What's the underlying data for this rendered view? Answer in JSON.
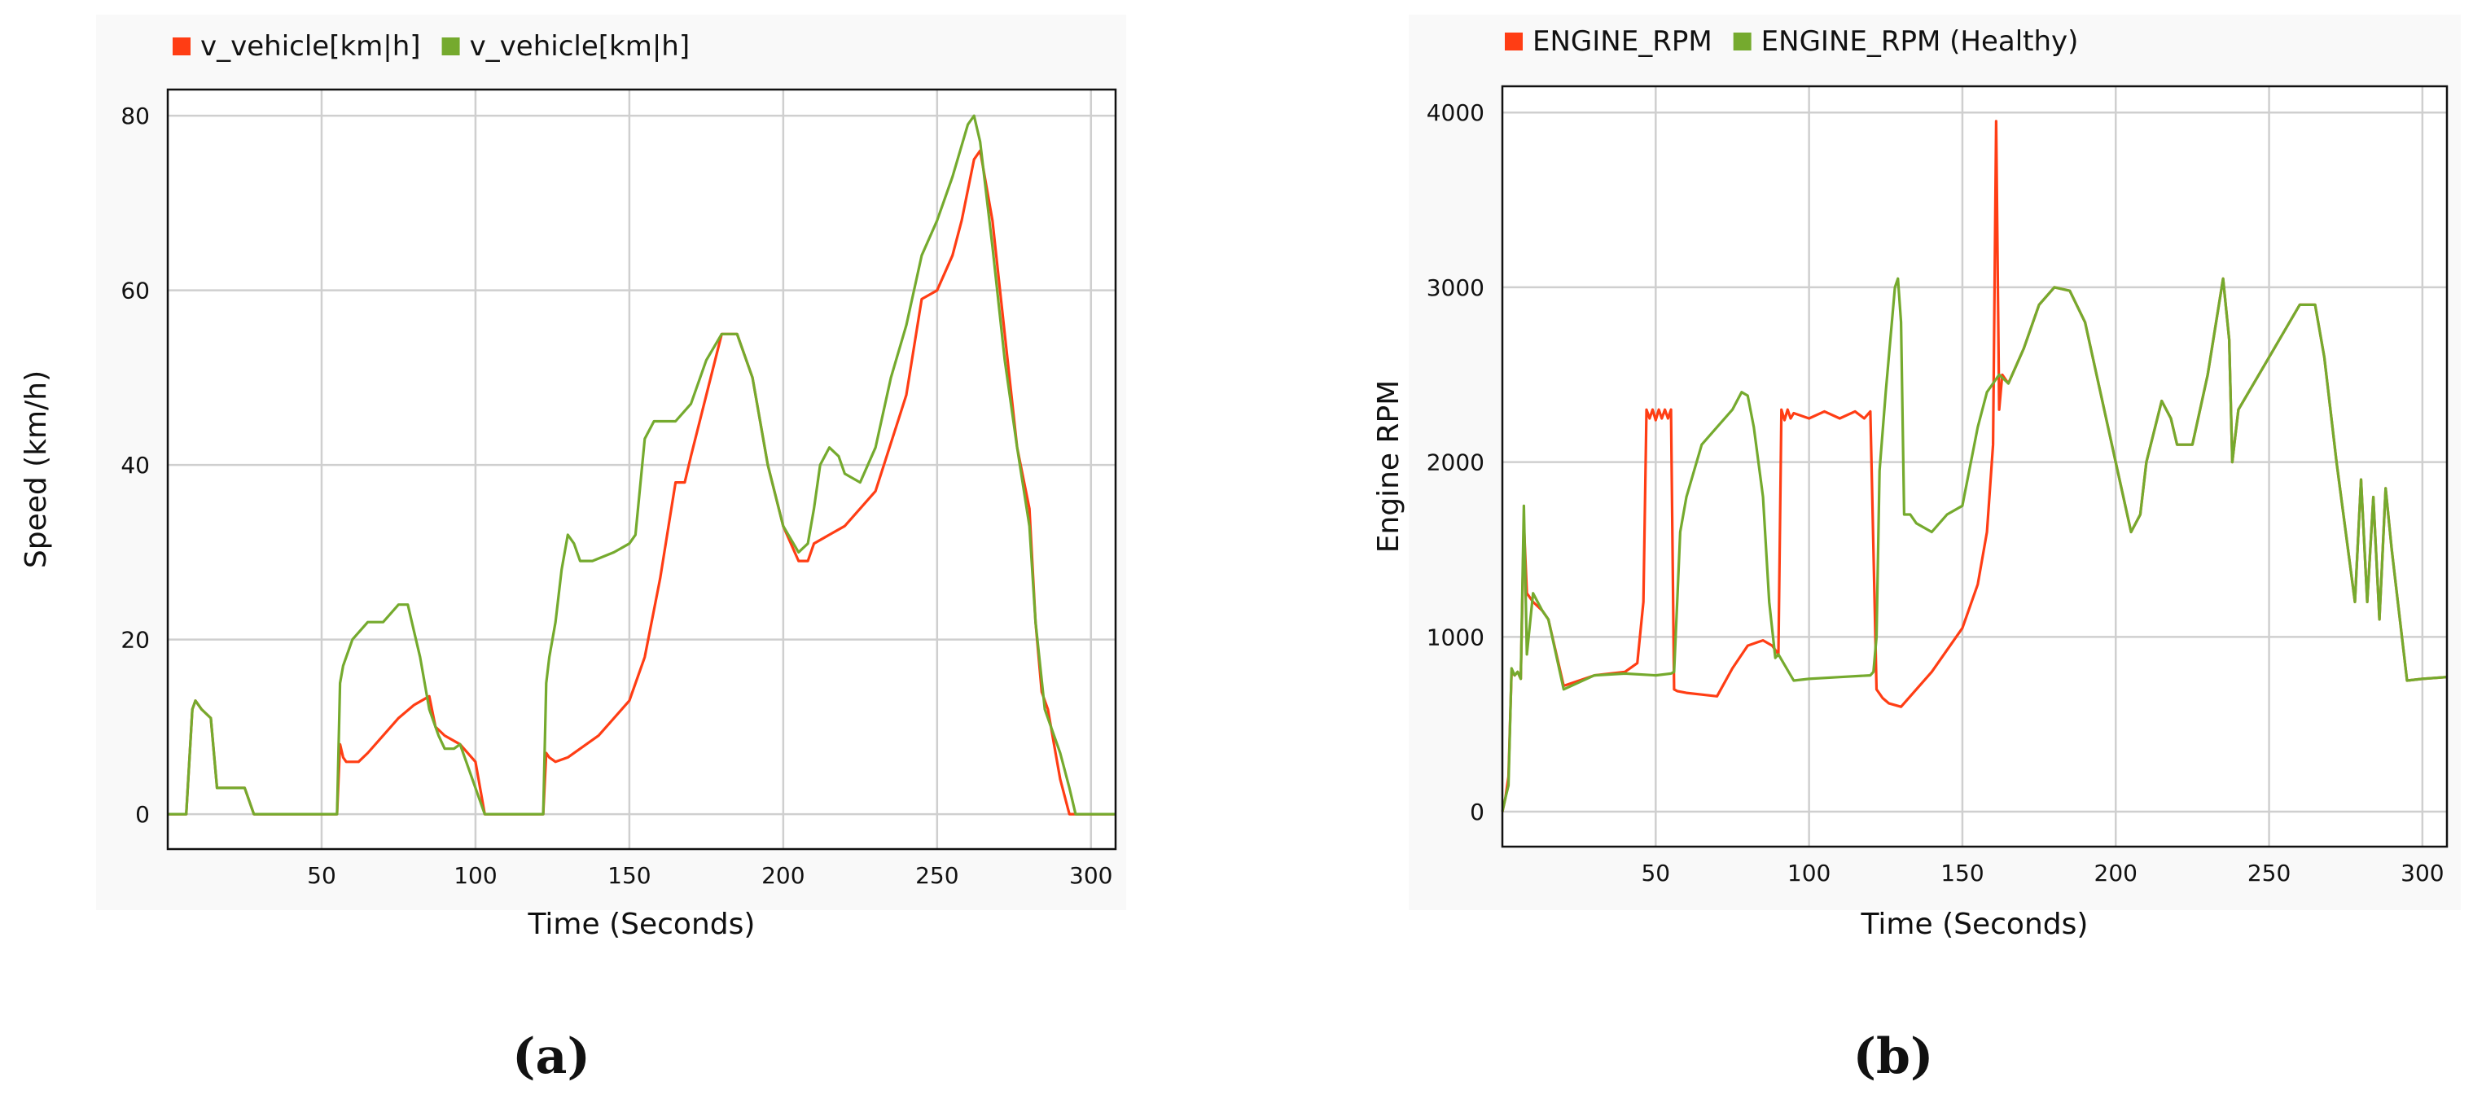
{
  "chart_data": [
    {
      "type": "line",
      "caption": "(a)",
      "xlabel": "Time (Seconds)",
      "ylabel": "Speed (km/h)",
      "xlim": [
        0,
        308
      ],
      "ylim": [
        -4,
        83
      ],
      "xticks": [
        50,
        100,
        150,
        200,
        250,
        300
      ],
      "yticks": [
        0,
        20,
        40,
        60,
        80
      ],
      "grid": true,
      "legend_position": "top-left",
      "series": [
        {
          "name": "v_vehicle[km|h]",
          "color": "#ff3d14",
          "x": [
            0,
            6,
            8,
            9,
            11,
            14,
            16,
            18,
            25,
            27,
            28,
            30,
            55,
            56,
            57,
            58,
            60,
            62,
            65,
            70,
            75,
            80,
            85,
            87,
            90,
            95,
            100,
            103,
            105,
            122,
            123,
            124,
            126,
            130,
            140,
            150,
            155,
            160,
            165,
            168,
            170,
            175,
            180,
            185,
            190,
            195,
            200,
            205,
            208,
            210,
            215,
            220,
            230,
            240,
            245,
            250,
            255,
            258,
            262,
            264,
            268,
            272,
            276,
            280,
            282,
            284,
            286,
            288,
            290,
            293,
            295,
            308
          ],
          "values": [
            0,
            0,
            12,
            13,
            12,
            11,
            3,
            3,
            3,
            1,
            0,
            0,
            0,
            8,
            6.5,
            6,
            6,
            6,
            7,
            9,
            11,
            12.5,
            13.5,
            10,
            9,
            8,
            6,
            0,
            0,
            0,
            7,
            6.5,
            6,
            6.5,
            9,
            13,
            18,
            27,
            38,
            38,
            41,
            48,
            55,
            55,
            50,
            40,
            33,
            29,
            29,
            31,
            32,
            33,
            37,
            48,
            59,
            60,
            64,
            68,
            75,
            76,
            68,
            55,
            42,
            35,
            22,
            14,
            12,
            8,
            4,
            0,
            0,
            0
          ]
        },
        {
          "name": "v_vehicle[km|h]",
          "color": "#75aa2e",
          "x": [
            0,
            6,
            8,
            9,
            11,
            14,
            16,
            18,
            25,
            27,
            28,
            30,
            55,
            56,
            57,
            60,
            65,
            70,
            75,
            78,
            80,
            82,
            85,
            88,
            90,
            93,
            95,
            97,
            100,
            103,
            105,
            122,
            123,
            124,
            126,
            128,
            130,
            132,
            134,
            138,
            145,
            150,
            152,
            155,
            158,
            165,
            170,
            175,
            180,
            185,
            190,
            195,
            200,
            205,
            208,
            210,
            212,
            215,
            218,
            220,
            225,
            230,
            235,
            240,
            245,
            250,
            255,
            260,
            262,
            264,
            268,
            272,
            276,
            280,
            282,
            285,
            290,
            293,
            295,
            308
          ],
          "values": [
            0,
            0,
            12,
            13,
            12,
            11,
            3,
            3,
            3,
            1,
            0,
            0,
            0,
            15,
            17,
            20,
            22,
            22,
            24,
            24,
            21,
            18,
            12,
            9,
            7.5,
            7.5,
            8,
            6,
            3,
            0,
            0,
            0,
            15,
            18,
            22,
            28,
            32,
            31,
            29,
            29,
            30,
            31,
            32,
            43,
            45,
            45,
            47,
            52,
            55,
            55,
            50,
            40,
            33,
            30,
            31,
            35,
            40,
            42,
            41,
            39,
            38,
            42,
            50,
            56,
            64,
            68,
            73,
            79,
            80,
            77,
            65,
            52,
            42,
            33,
            22,
            12,
            7,
            3,
            0,
            0
          ]
        }
      ]
    },
    {
      "type": "line",
      "caption": "(b)",
      "xlabel": "Time (Seconds)",
      "ylabel": "Engine RPM",
      "xlim": [
        0,
        308
      ],
      "ylim": [
        -200,
        4150
      ],
      "xticks": [
        50,
        100,
        150,
        200,
        250,
        300
      ],
      "yticks": [
        0,
        1000,
        2000,
        3000,
        4000
      ],
      "grid": true,
      "legend_position": "top-left",
      "series": [
        {
          "name": "ENGINE_RPM",
          "color": "#ff3d14",
          "x": [
            0,
            1,
            2,
            3,
            4,
            5,
            6,
            7,
            8,
            10,
            13,
            15,
            20,
            30,
            40,
            44,
            46,
            47,
            48,
            49,
            50,
            51,
            52,
            53,
            54,
            55,
            56,
            57,
            60,
            65,
            70,
            75,
            80,
            85,
            88,
            90,
            91,
            92,
            93,
            94,
            95,
            100,
            105,
            110,
            115,
            118,
            120,
            121,
            122,
            124,
            126,
            130,
            140,
            150,
            155,
            158,
            160,
            161,
            162,
            163,
            165,
            170,
            175,
            180,
            185,
            190,
            195,
            200,
            205,
            208,
            210,
            215,
            218,
            220,
            225,
            230,
            235,
            237,
            238,
            239,
            240,
            250,
            260,
            265,
            268,
            270,
            272,
            275,
            278,
            280,
            282,
            284,
            286,
            288,
            290,
            292,
            295,
            300,
            308
          ],
          "values": [
            0,
            80,
            200,
            800,
            780,
            800,
            760,
            1650,
            1250,
            1200,
            1150,
            1100,
            720,
            780,
            800,
            850,
            1200,
            2300,
            2250,
            2300,
            2240,
            2300,
            2250,
            2300,
            2250,
            2300,
            700,
            690,
            680,
            670,
            660,
            820,
            950,
            980,
            950,
            900,
            2300,
            2240,
            2300,
            2250,
            2280,
            2250,
            2290,
            2250,
            2290,
            2250,
            2290,
            1500,
            700,
            650,
            620,
            600,
            800,
            1050,
            1300,
            1600,
            2100,
            3950,
            2300,
            2500,
            2450,
            2650,
            2900,
            3000,
            2980,
            2800,
            2400,
            2000,
            1600,
            1700,
            2000,
            2350,
            2250,
            2100,
            2100,
            2500,
            3050,
            2700,
            2000,
            2150,
            2300,
            2600,
            2900,
            2900,
            2600,
            2300,
            2000,
            1600,
            1200,
            1900,
            1200,
            1800,
            1100,
            1850,
            1500,
            1200,
            750,
            760,
            770
          ]
        },
        {
          "name": "ENGINE_RPM (Healthy)",
          "color": "#75aa2e",
          "x": [
            0,
            1,
            2,
            3,
            4,
            5,
            6,
            7,
            8,
            10,
            13,
            15,
            20,
            30,
            40,
            50,
            55,
            56,
            57,
            58,
            60,
            65,
            70,
            75,
            78,
            80,
            82,
            85,
            87,
            89,
            90,
            95,
            100,
            110,
            120,
            121,
            122,
            123,
            125,
            128,
            129,
            130,
            131,
            133,
            135,
            140,
            145,
            150,
            155,
            158,
            160,
            162,
            165,
            170,
            175,
            180,
            185,
            190,
            195,
            200,
            205,
            208,
            210,
            215,
            218,
            220,
            225,
            230,
            235,
            237,
            238,
            239,
            240,
            250,
            260,
            265,
            268,
            270,
            272,
            275,
            278,
            280,
            282,
            284,
            286,
            288,
            290,
            292,
            295,
            300,
            308
          ],
          "values": [
            0,
            80,
            150,
            820,
            780,
            800,
            760,
            1750,
            900,
            1250,
            1150,
            1100,
            700,
            780,
            790,
            780,
            790,
            800,
            1200,
            1600,
            1800,
            2100,
            2200,
            2300,
            2400,
            2380,
            2200,
            1800,
            1200,
            880,
            900,
            750,
            760,
            770,
            780,
            800,
            1000,
            1950,
            2400,
            3000,
            3050,
            2800,
            1700,
            1700,
            1650,
            1600,
            1700,
            1750,
            2200,
            2400,
            2450,
            2500,
            2450,
            2650,
            2900,
            3000,
            2980,
            2800,
            2400,
            2000,
            1600,
            1700,
            2000,
            2350,
            2250,
            2100,
            2100,
            2500,
            3050,
            2700,
            2000,
            2150,
            2300,
            2600,
            2900,
            2900,
            2600,
            2300,
            2000,
            1600,
            1200,
            1900,
            1200,
            1800,
            1100,
            1850,
            1500,
            1200,
            750,
            760,
            770
          ]
        }
      ]
    }
  ]
}
